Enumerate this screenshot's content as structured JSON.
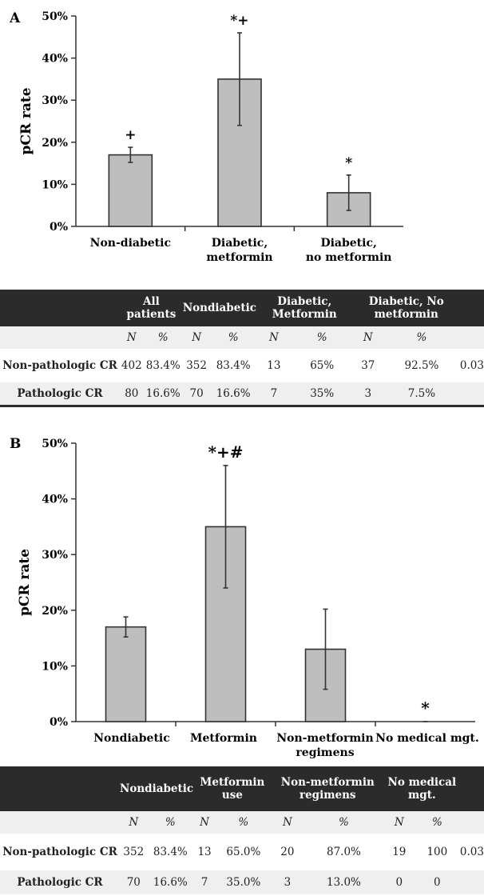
{
  "panels": [
    {
      "letter": "A",
      "table": {
        "headers": [
          "",
          "All patients",
          "Nondiabetic",
          "Diabetic, Metformin",
          "Diabetic, No metformin",
          ""
        ],
        "subheaders": [
          "",
          "N",
          "%",
          "N",
          "%",
          "N",
          "%",
          "N",
          "%",
          ""
        ],
        "rows": [
          {
            "label": "Non-pathologic CR",
            "cells": [
              "402",
              "83.4%",
              "352",
              "83.4%",
              "13",
              "65%",
              "37",
              "92.5%",
              "0.03"
            ]
          },
          {
            "label": "Pathologic CR",
            "cells": [
              "80",
              "16.6%",
              "70",
              "16.6%",
              "7",
              "35%",
              "3",
              "7.5%",
              ""
            ]
          }
        ]
      }
    },
    {
      "letter": "B",
      "table": {
        "headers": [
          "",
          "Nondiabetic",
          "Metformin use",
          "Non-metformin regimens",
          "No medical mgt.",
          ""
        ],
        "subheaders": [
          "",
          "N",
          "%",
          "N",
          "%",
          "N",
          "%",
          "N",
          "%",
          ""
        ],
        "rows": [
          {
            "label": "Non-pathologic CR",
            "cells": [
              "352",
              "83.4%",
              "13",
              "65.0%",
              "20",
              "87.0%",
              "19",
              "100",
              "0.03"
            ]
          },
          {
            "label": "Pathologic CR",
            "cells": [
              "70",
              "16.6%",
              "7",
              "35.0%",
              "3",
              "13.0%",
              "0",
              "0",
              ""
            ]
          }
        ]
      }
    }
  ],
  "chart_data": [
    {
      "type": "bar",
      "ylabel": "pCR rate",
      "ylim": [
        0,
        50
      ],
      "yticks": [
        "0%",
        "10%",
        "20%",
        "30%",
        "40%",
        "50%"
      ],
      "categories": [
        "Non-diabetic",
        "Diabetic, metformin",
        "Diabetic, no metformin"
      ],
      "values": [
        17,
        35,
        8
      ],
      "error_low": [
        15.2,
        24,
        3.8
      ],
      "error_high": [
        18.8,
        46,
        12.2
      ],
      "markers": [
        "+",
        "*+",
        "*"
      ],
      "bar_color": "#bebebe",
      "grid": false
    },
    {
      "type": "bar",
      "ylabel": "pCR rate",
      "ylim": [
        0,
        50
      ],
      "yticks": [
        "0%",
        "10%",
        "20%",
        "30%",
        "40%",
        "50%"
      ],
      "categories": [
        "Nondiabetic",
        "Metformin",
        "Non-metformin regimens",
        "No medical mgt."
      ],
      "values": [
        17,
        35,
        13,
        0
      ],
      "error_low": [
        15.2,
        24,
        5.8,
        0
      ],
      "error_high": [
        18.8,
        46,
        20.2,
        0
      ],
      "markers": [
        "",
        "*+#",
        "",
        "*"
      ],
      "bar_color": "#bebebe",
      "grid": false
    }
  ]
}
